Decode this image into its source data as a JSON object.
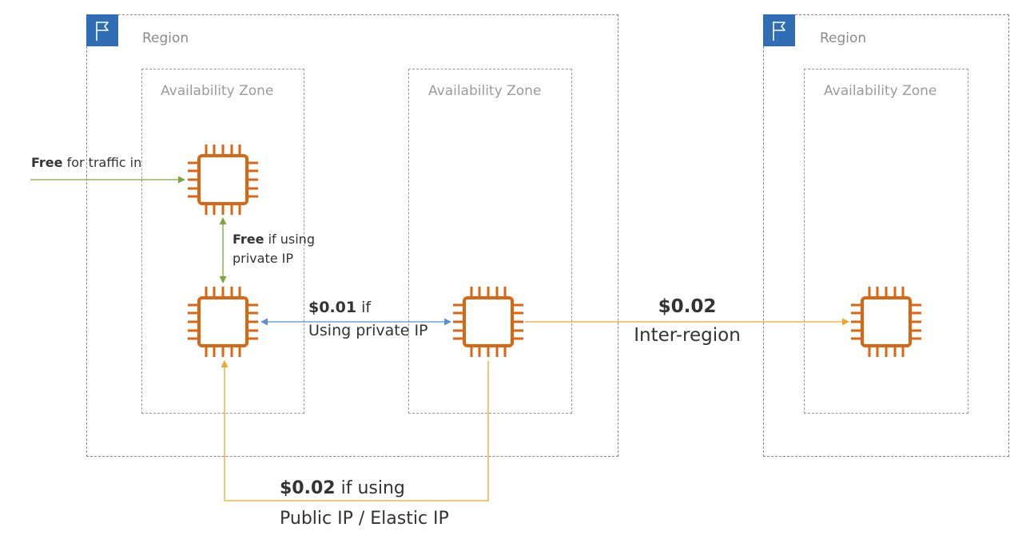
{
  "regions": [
    {
      "label": "Region",
      "icon": "flag-icon",
      "color": "#2f6db5"
    },
    {
      "label": "Region",
      "icon": "flag-icon",
      "color": "#2f6db5"
    }
  ],
  "availability_zones": [
    {
      "label": "Availability Zone"
    },
    {
      "label": "Availability Zone"
    },
    {
      "label": "Availability Zone"
    }
  ],
  "instances": [
    {
      "icon": "ec2-instance-icon",
      "color": "#d86613"
    },
    {
      "icon": "ec2-instance-icon",
      "color": "#d86613"
    },
    {
      "icon": "ec2-instance-icon",
      "color": "#d86613"
    },
    {
      "icon": "ec2-instance-icon",
      "color": "#d86613"
    }
  ],
  "labels": {
    "traffic_in_bold": "Free",
    "traffic_in_rest": " for traffic in",
    "same_az_bold": "Free",
    "same_az_line1": " if using",
    "same_az_line2": "private IP",
    "cross_az_bold": "$0.01",
    "cross_az_line1": " if",
    "cross_az_line2": "Using private IP",
    "inter_region_line1": "$0.02",
    "inter_region_line2": "Inter-region",
    "public_ip_bold": "$0.02",
    "public_ip_line1": " if using",
    "public_ip_line2": "Public IP / Elastic IP"
  },
  "colors": {
    "free_arrow": "#7aa63a",
    "private_arrow": "#5b8fd0",
    "paid_arrow": "#e8a92a"
  }
}
